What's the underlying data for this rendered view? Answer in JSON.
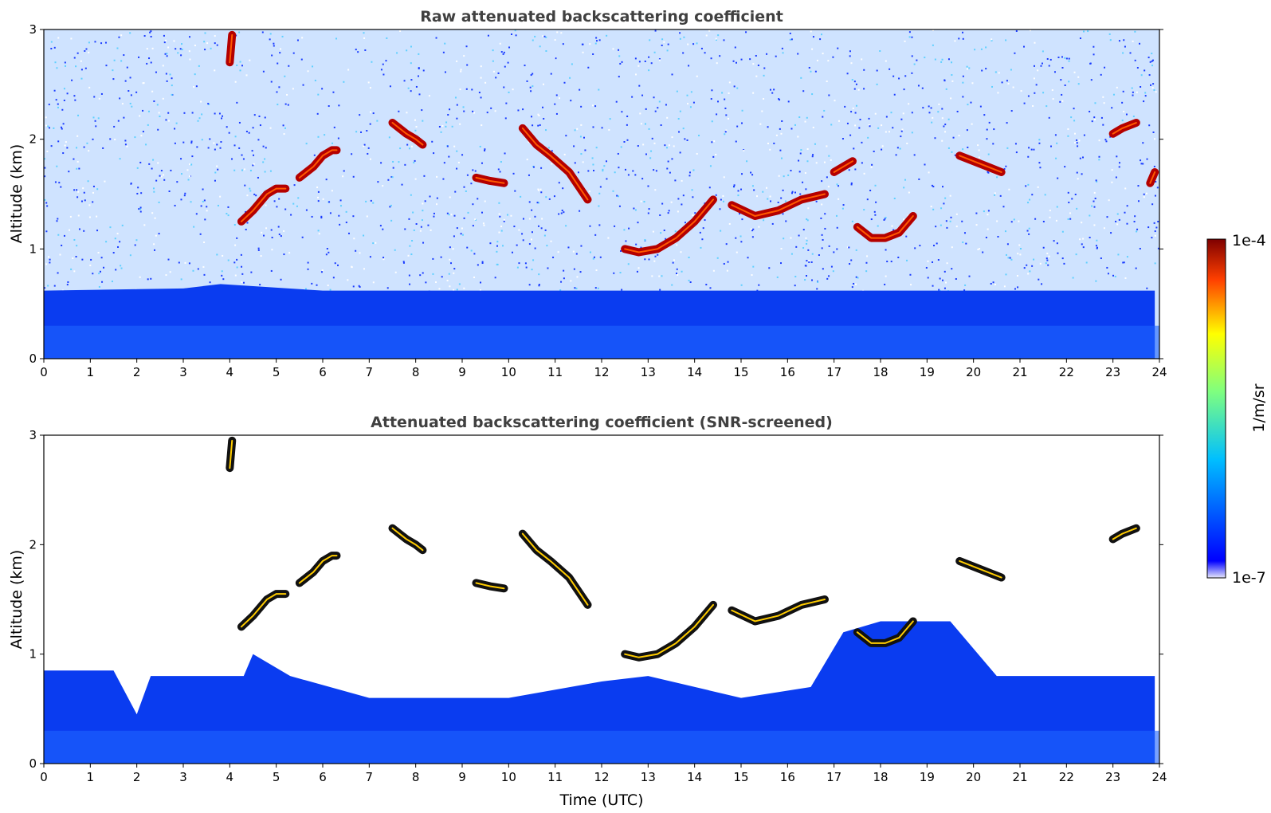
{
  "chart_data": [
    {
      "type": "heatmap",
      "title": "Raw attenuated backscattering coefficient",
      "xlabel": "",
      "ylabel": "Altitude (km)",
      "xlim": [
        0,
        24
      ],
      "ylim": [
        0,
        3
      ],
      "x_ticks": [
        "0",
        "1",
        "2",
        "3",
        "4",
        "5",
        "6",
        "7",
        "8",
        "9",
        "10",
        "11",
        "12",
        "13",
        "14",
        "15",
        "16",
        "17",
        "18",
        "19",
        "20",
        "21",
        "22",
        "23",
        "24"
      ],
      "y_ticks": [
        "0",
        "1",
        "2",
        "3"
      ],
      "boundary_layer": [
        [
          0,
          0.62
        ],
        [
          3,
          0.64
        ],
        [
          3.8,
          0.68
        ],
        [
          6,
          0.62
        ],
        [
          12,
          0.62
        ],
        [
          18,
          0.62
        ],
        [
          23.9,
          0.62
        ]
      ],
      "clouds": [
        {
          "x": [
            4.25,
            4.5,
            4.8,
            5.0,
            5.2
          ],
          "y": [
            1.25,
            1.35,
            1.5,
            1.55,
            1.55
          ]
        },
        {
          "x": [
            5.5,
            5.8,
            6.0,
            6.2,
            6.3
          ],
          "y": [
            1.65,
            1.75,
            1.85,
            1.9,
            1.9
          ]
        },
        {
          "x": [
            4.0,
            4.05
          ],
          "y": [
            2.7,
            2.95
          ]
        },
        {
          "x": [
            7.5,
            7.8,
            8.0,
            8.15
          ],
          "y": [
            2.15,
            2.05,
            2.0,
            1.95
          ]
        },
        {
          "x": [
            9.3,
            9.6,
            9.9
          ],
          "y": [
            1.65,
            1.62,
            1.6
          ]
        },
        {
          "x": [
            10.3,
            10.6,
            10.9,
            11.3,
            11.7
          ],
          "y": [
            2.1,
            1.95,
            1.85,
            1.7,
            1.45
          ]
        },
        {
          "x": [
            12.5,
            12.8,
            13.2,
            13.6,
            14.0,
            14.4
          ],
          "y": [
            1.0,
            0.97,
            1.0,
            1.1,
            1.25,
            1.45
          ]
        },
        {
          "x": [
            14.8,
            15.3,
            15.8,
            16.3,
            16.8
          ],
          "y": [
            1.4,
            1.3,
            1.35,
            1.45,
            1.5
          ]
        },
        {
          "x": [
            17.0,
            17.2,
            17.4
          ],
          "y": [
            1.7,
            1.75,
            1.8
          ]
        },
        {
          "x": [
            17.5,
            17.8,
            18.1,
            18.4,
            18.7
          ],
          "y": [
            1.2,
            1.1,
            1.1,
            1.15,
            1.3
          ]
        },
        {
          "x": [
            19.7,
            20.0,
            20.3,
            20.6
          ],
          "y": [
            1.85,
            1.8,
            1.75,
            1.7
          ]
        },
        {
          "x": [
            23.0,
            23.2,
            23.5
          ],
          "y": [
            2.05,
            2.1,
            2.15
          ]
        },
        {
          "x": [
            23.8,
            23.9
          ],
          "y": [
            1.6,
            1.7
          ]
        }
      ]
    },
    {
      "type": "heatmap",
      "title": "Attenuated backscattering coefficient (SNR-screened)",
      "xlabel": "Time (UTC)",
      "ylabel": "Altitude (km)",
      "xlim": [
        0,
        24
      ],
      "ylim": [
        0,
        3
      ],
      "x_ticks": [
        "0",
        "1",
        "2",
        "3",
        "4",
        "5",
        "6",
        "7",
        "8",
        "9",
        "10",
        "11",
        "12",
        "13",
        "14",
        "15",
        "16",
        "17",
        "18",
        "19",
        "20",
        "21",
        "22",
        "23",
        "24"
      ],
      "y_ticks": [
        "0",
        "1",
        "2",
        "3"
      ],
      "screened_top": [
        [
          0,
          0.85
        ],
        [
          1.5,
          0.85
        ],
        [
          2.0,
          0.45
        ],
        [
          2.3,
          0.8
        ],
        [
          4.3,
          0.8
        ],
        [
          4.5,
          1.0
        ],
        [
          5.3,
          0.8
        ],
        [
          7.0,
          0.6
        ],
        [
          9.0,
          0.6
        ],
        [
          10.0,
          0.6
        ],
        [
          12.0,
          0.75
        ],
        [
          13.0,
          0.8
        ],
        [
          15.0,
          0.6
        ],
        [
          16.5,
          0.7
        ],
        [
          17.2,
          1.2
        ],
        [
          18.0,
          1.3
        ],
        [
          19.5,
          1.3
        ],
        [
          20.5,
          0.8
        ],
        [
          23.9,
          0.8
        ]
      ],
      "clouds": [
        {
          "x": [
            4.25,
            4.5,
            4.8,
            5.0,
            5.2
          ],
          "y": [
            1.25,
            1.35,
            1.5,
            1.55,
            1.55
          ]
        },
        {
          "x": [
            5.5,
            5.8,
            6.0,
            6.2,
            6.3
          ],
          "y": [
            1.65,
            1.75,
            1.85,
            1.9,
            1.9
          ]
        },
        {
          "x": [
            4.0,
            4.05
          ],
          "y": [
            2.7,
            2.95
          ]
        },
        {
          "x": [
            7.5,
            7.8,
            8.0,
            8.15
          ],
          "y": [
            2.15,
            2.05,
            2.0,
            1.95
          ]
        },
        {
          "x": [
            9.3,
            9.6,
            9.9
          ],
          "y": [
            1.65,
            1.62,
            1.6
          ]
        },
        {
          "x": [
            10.3,
            10.6,
            10.9,
            11.3,
            11.7
          ],
          "y": [
            2.1,
            1.95,
            1.85,
            1.7,
            1.45
          ]
        },
        {
          "x": [
            12.5,
            12.8,
            13.2,
            13.6,
            14.0,
            14.4
          ],
          "y": [
            1.0,
            0.97,
            1.0,
            1.1,
            1.25,
            1.45
          ]
        },
        {
          "x": [
            14.8,
            15.3,
            15.8,
            16.3,
            16.8
          ],
          "y": [
            1.4,
            1.3,
            1.35,
            1.45,
            1.5
          ]
        },
        {
          "x": [
            17.5,
            17.8,
            18.1,
            18.4,
            18.7
          ],
          "y": [
            1.2,
            1.1,
            1.1,
            1.15,
            1.3
          ]
        },
        {
          "x": [
            19.7,
            20.0,
            20.3,
            20.6
          ],
          "y": [
            1.85,
            1.8,
            1.75,
            1.7
          ]
        },
        {
          "x": [
            23.0,
            23.2,
            23.5
          ],
          "y": [
            2.05,
            2.1,
            2.15
          ]
        }
      ]
    }
  ],
  "colorbar": {
    "label": "1/m/sr",
    "min_label": "1e-7",
    "max_label": "1e-4",
    "scale": "log",
    "colors": [
      "#e6e6fa",
      "#0000ff",
      "#00bfff",
      "#7fff7f",
      "#ffff00",
      "#ff4000",
      "#7f0000"
    ]
  }
}
